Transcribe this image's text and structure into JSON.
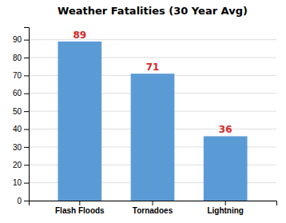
{
  "chart_data": {
    "type": "bar",
    "title": "Weather Fatalities (30 Year Avg)",
    "categories": [
      "Flash Floods",
      "Tornadoes",
      "Lightning"
    ],
    "values": [
      89,
      71,
      36
    ],
    "color": "#5B9BD5",
    "ylim": [
      0,
      97
    ],
    "yticks": [
      0,
      10,
      20,
      30,
      40,
      50,
      60,
      70,
      80,
      90
    ],
    "grid": true,
    "data_labels": true
  }
}
